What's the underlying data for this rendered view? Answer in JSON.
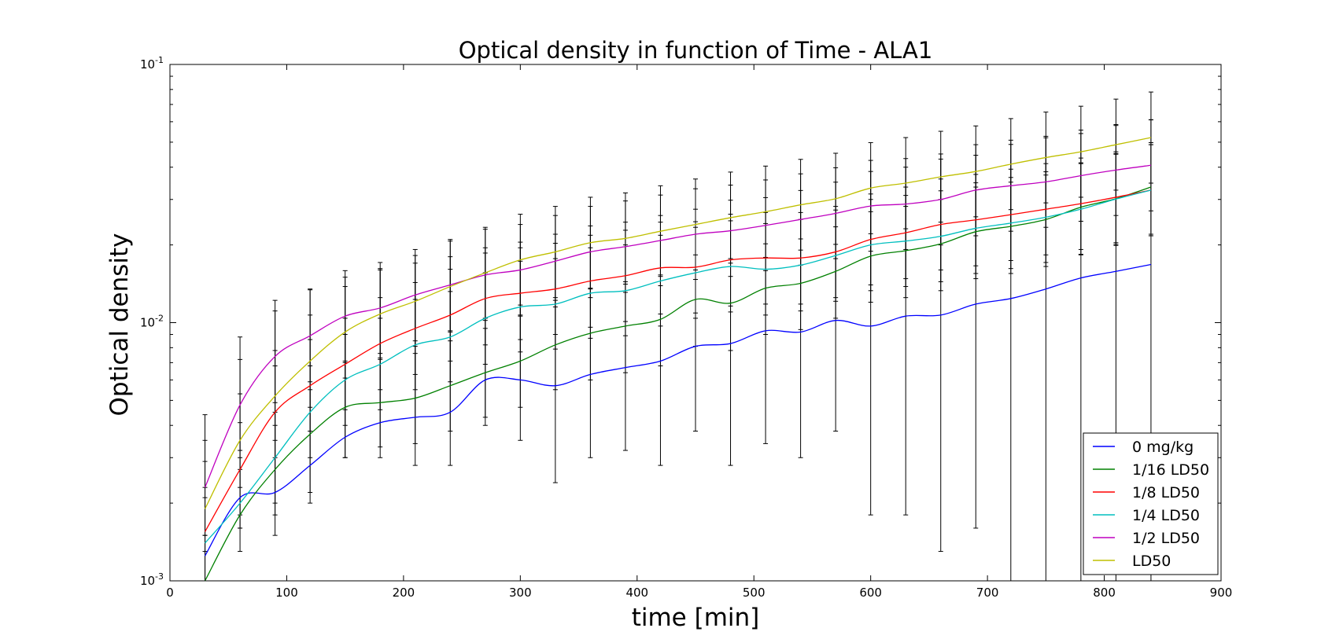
{
  "chart_data": {
    "type": "line",
    "title": "Optical density in function of Time - ALA1",
    "xlabel": "time [min]",
    "ylabel": "Optical density",
    "xlim": [
      0,
      900
    ],
    "ylim": [
      0.001,
      0.1
    ],
    "yscale": "log",
    "x_ticks": [
      "0",
      "100",
      "200",
      "300",
      "400",
      "500",
      "600",
      "700",
      "800",
      "900"
    ],
    "y_ticks": [
      {
        "base": "10",
        "exp": "-3"
      },
      {
        "base": "10",
        "exp": "-2"
      },
      {
        "base": "10",
        "exp": "-1"
      }
    ],
    "grid": false,
    "legend_position": "lower right",
    "x": [
      30,
      60,
      90,
      120,
      150,
      180,
      210,
      240,
      270,
      300,
      330,
      360,
      390,
      420,
      450,
      480,
      510,
      540,
      570,
      600,
      630,
      660,
      690,
      720,
      750,
      780,
      810,
      840
    ],
    "series": [
      {
        "name": "0 mg/kg",
        "color": "#0000ff",
        "values": [
          0.00125,
          0.0021,
          0.0022,
          0.0028,
          0.0036,
          0.0041,
          0.0043,
          0.0045,
          0.006,
          0.006,
          0.0057,
          0.0063,
          0.0067,
          0.0071,
          0.0081,
          0.0083,
          0.0093,
          0.0092,
          0.0102,
          0.0097,
          0.0106,
          0.0107,
          0.0118,
          0.0124,
          0.0135,
          0.0149,
          0.0158,
          0.0168
        ],
        "err_low": [
          0.001,
          0.0016,
          0.0015,
          0.002,
          0.003,
          0.003,
          0.0028,
          0.0028,
          0.004,
          0.0035,
          0.0024,
          0.003,
          0.0032,
          0.0028,
          0.0038,
          0.0028,
          0.0034,
          0.003,
          0.0038,
          0.0018,
          0.0018,
          0.0013,
          0.0016,
          0.001,
          0.001,
          0.001,
          0.001,
          0.001
        ],
        "err_high": [
          0.0044,
          0.0088,
          0.0122,
          0.0135,
          0.015,
          0.016,
          0.017,
          0.018,
          0.0195,
          0.0205,
          0.022,
          0.0237,
          0.0245,
          0.026,
          0.0275,
          0.0298,
          0.0305,
          0.0325,
          0.035,
          0.0385,
          0.04,
          0.043,
          0.0445,
          0.049,
          0.052,
          0.054,
          0.058,
          0.061
        ]
      },
      {
        "name": "1/16 LD50",
        "color": "#008000",
        "values": [
          0.001,
          0.0018,
          0.0027,
          0.0037,
          0.0047,
          0.0049,
          0.0051,
          0.0057,
          0.0064,
          0.0071,
          0.0082,
          0.0091,
          0.0097,
          0.0103,
          0.0123,
          0.0119,
          0.0136,
          0.0142,
          0.0158,
          0.0181,
          0.019,
          0.0202,
          0.0225,
          0.0236,
          0.0251,
          0.028,
          0.0302,
          0.0335
        ],
        "err_low": [
          0.001,
          0.0016,
          0.0018,
          0.0022,
          0.003,
          0.0033,
          0.0034,
          0.0038,
          0.0043,
          0.0047,
          0.0055,
          0.006,
          0.0064,
          0.0068,
          0.0081,
          0.0078,
          0.009,
          0.0094,
          0.0104,
          0.012,
          0.0125,
          0.0133,
          0.0148,
          0.0155,
          0.0165,
          0.0184,
          0.0199,
          0.022
        ],
        "err_high": [
          0.0015,
          0.0027,
          0.004,
          0.0055,
          0.007,
          0.0073,
          0.0076,
          0.0085,
          0.0095,
          0.0106,
          0.0122,
          0.0135,
          0.0144,
          0.0153,
          0.0183,
          0.0177,
          0.0202,
          0.0211,
          0.0235,
          0.0269,
          0.0282,
          0.03,
          0.0335,
          0.035,
          0.0373,
          0.0416,
          0.0449,
          0.0498
        ]
      },
      {
        "name": "1/8 LD50",
        "color": "#ff0000",
        "values": [
          0.00155,
          0.0027,
          0.0045,
          0.0057,
          0.0069,
          0.0083,
          0.0095,
          0.0107,
          0.0124,
          0.013,
          0.0135,
          0.0145,
          0.0152,
          0.0163,
          0.0164,
          0.0175,
          0.0178,
          0.0178,
          0.0188,
          0.021,
          0.0223,
          0.024,
          0.025,
          0.0262,
          0.0275,
          0.0289,
          0.0306,
          0.0326
        ],
        "err_low": [
          0.001,
          0.0018,
          0.003,
          0.0038,
          0.0046,
          0.0055,
          0.0063,
          0.0071,
          0.0082,
          0.0086,
          0.009,
          0.0096,
          0.0101,
          0.0108,
          0.0109,
          0.0116,
          0.0118,
          0.0118,
          0.0125,
          0.014,
          0.0148,
          0.016,
          0.0166,
          0.0174,
          0.0183,
          0.0192,
          0.0204,
          0.0217
        ],
        "err_high": [
          0.0023,
          0.0041,
          0.0068,
          0.0086,
          0.0104,
          0.0125,
          0.0143,
          0.0161,
          0.0186,
          0.0195,
          0.0203,
          0.0218,
          0.0228,
          0.0245,
          0.0246,
          0.0263,
          0.0267,
          0.0267,
          0.0282,
          0.0315,
          0.0335,
          0.036,
          0.0375,
          0.0393,
          0.0413,
          0.0434,
          0.0459,
          0.0489
        ]
      },
      {
        "name": "1/4 LD50",
        "color": "#00bfbf",
        "values": [
          0.0014,
          0.002,
          0.003,
          0.0045,
          0.006,
          0.0069,
          0.0082,
          0.0088,
          0.0104,
          0.0115,
          0.0118,
          0.013,
          0.0133,
          0.0145,
          0.0156,
          0.0165,
          0.0161,
          0.0167,
          0.0182,
          0.02,
          0.0207,
          0.0216,
          0.0232,
          0.0243,
          0.0256,
          0.0275,
          0.0301,
          0.0326
        ],
        "err_low": [
          0.001,
          0.0013,
          0.002,
          0.003,
          0.004,
          0.0046,
          0.0055,
          0.0059,
          0.0069,
          0.0077,
          0.0079,
          0.0087,
          0.0089,
          0.0097,
          0.0104,
          0.011,
          0.0107,
          0.0111,
          0.0121,
          0.0133,
          0.0138,
          0.0144,
          0.0155,
          0.0162,
          0.0171,
          0.0183,
          0.0201,
          0.0217
        ],
        "err_high": [
          0.0021,
          0.003,
          0.0045,
          0.0068,
          0.009,
          0.0104,
          0.0123,
          0.0132,
          0.0156,
          0.0173,
          0.0177,
          0.0195,
          0.02,
          0.0218,
          0.0234,
          0.0248,
          0.0242,
          0.0251,
          0.0273,
          0.03,
          0.0311,
          0.0324,
          0.0348,
          0.0365,
          0.0384,
          0.0413,
          0.0452,
          0.0489
        ]
      },
      {
        "name": "1/2 LD50",
        "color": "#bf00bf",
        "values": [
          0.0023,
          0.0048,
          0.0074,
          0.0089,
          0.0106,
          0.0114,
          0.0128,
          0.014,
          0.0153,
          0.016,
          0.0173,
          0.0188,
          0.0197,
          0.0208,
          0.022,
          0.0227,
          0.0238,
          0.0251,
          0.0265,
          0.0283,
          0.0288,
          0.03,
          0.0326,
          0.0339,
          0.0351,
          0.0371,
          0.039,
          0.0407
        ],
        "err_low": [
          0.0015,
          0.0032,
          0.0049,
          0.0059,
          0.0071,
          0.0076,
          0.0085,
          0.0093,
          0.0102,
          0.0107,
          0.0115,
          0.0125,
          0.0131,
          0.0139,
          0.0147,
          0.0151,
          0.0159,
          0.0167,
          0.0177,
          0.0189,
          0.0192,
          0.02,
          0.0217,
          0.0226,
          0.0234,
          0.0247,
          0.026,
          0.0271
        ],
        "err_high": [
          0.0035,
          0.0072,
          0.0111,
          0.0134,
          0.0159,
          0.0171,
          0.0192,
          0.021,
          0.023,
          0.024,
          0.026,
          0.0282,
          0.0296,
          0.0312,
          0.033,
          0.0341,
          0.0357,
          0.0377,
          0.0398,
          0.0425,
          0.0432,
          0.045,
          0.0489,
          0.0509,
          0.0527,
          0.0557,
          0.0585,
          0.0611
        ]
      },
      {
        "name": "LD50",
        "color": "#bfbf00",
        "values": [
          0.0019,
          0.0035,
          0.0052,
          0.0071,
          0.0092,
          0.0108,
          0.0121,
          0.0138,
          0.0156,
          0.0175,
          0.0188,
          0.0204,
          0.0212,
          0.0226,
          0.024,
          0.0255,
          0.0269,
          0.0286,
          0.0302,
          0.0332,
          0.0347,
          0.0367,
          0.0385,
          0.0411,
          0.0436,
          0.0459,
          0.0489,
          0.0521
        ],
        "err_low": [
          0.0013,
          0.0023,
          0.0035,
          0.0047,
          0.0061,
          0.0072,
          0.0081,
          0.0092,
          0.0104,
          0.0117,
          0.0125,
          0.0136,
          0.0141,
          0.0151,
          0.016,
          0.017,
          0.0179,
          0.0191,
          0.0201,
          0.0221,
          0.0231,
          0.0245,
          0.0257,
          0.0274,
          0.0291,
          0.0306,
          0.0326,
          0.0347
        ],
        "err_high": [
          0.0029,
          0.0053,
          0.0078,
          0.0107,
          0.0138,
          0.0162,
          0.0182,
          0.0207,
          0.0234,
          0.0263,
          0.0282,
          0.0306,
          0.0318,
          0.0339,
          0.036,
          0.0383,
          0.0404,
          0.0429,
          0.0453,
          0.0498,
          0.0521,
          0.0551,
          0.0578,
          0.0617,
          0.0654,
          0.0689,
          0.0734,
          0.0782
        ]
      }
    ]
  }
}
